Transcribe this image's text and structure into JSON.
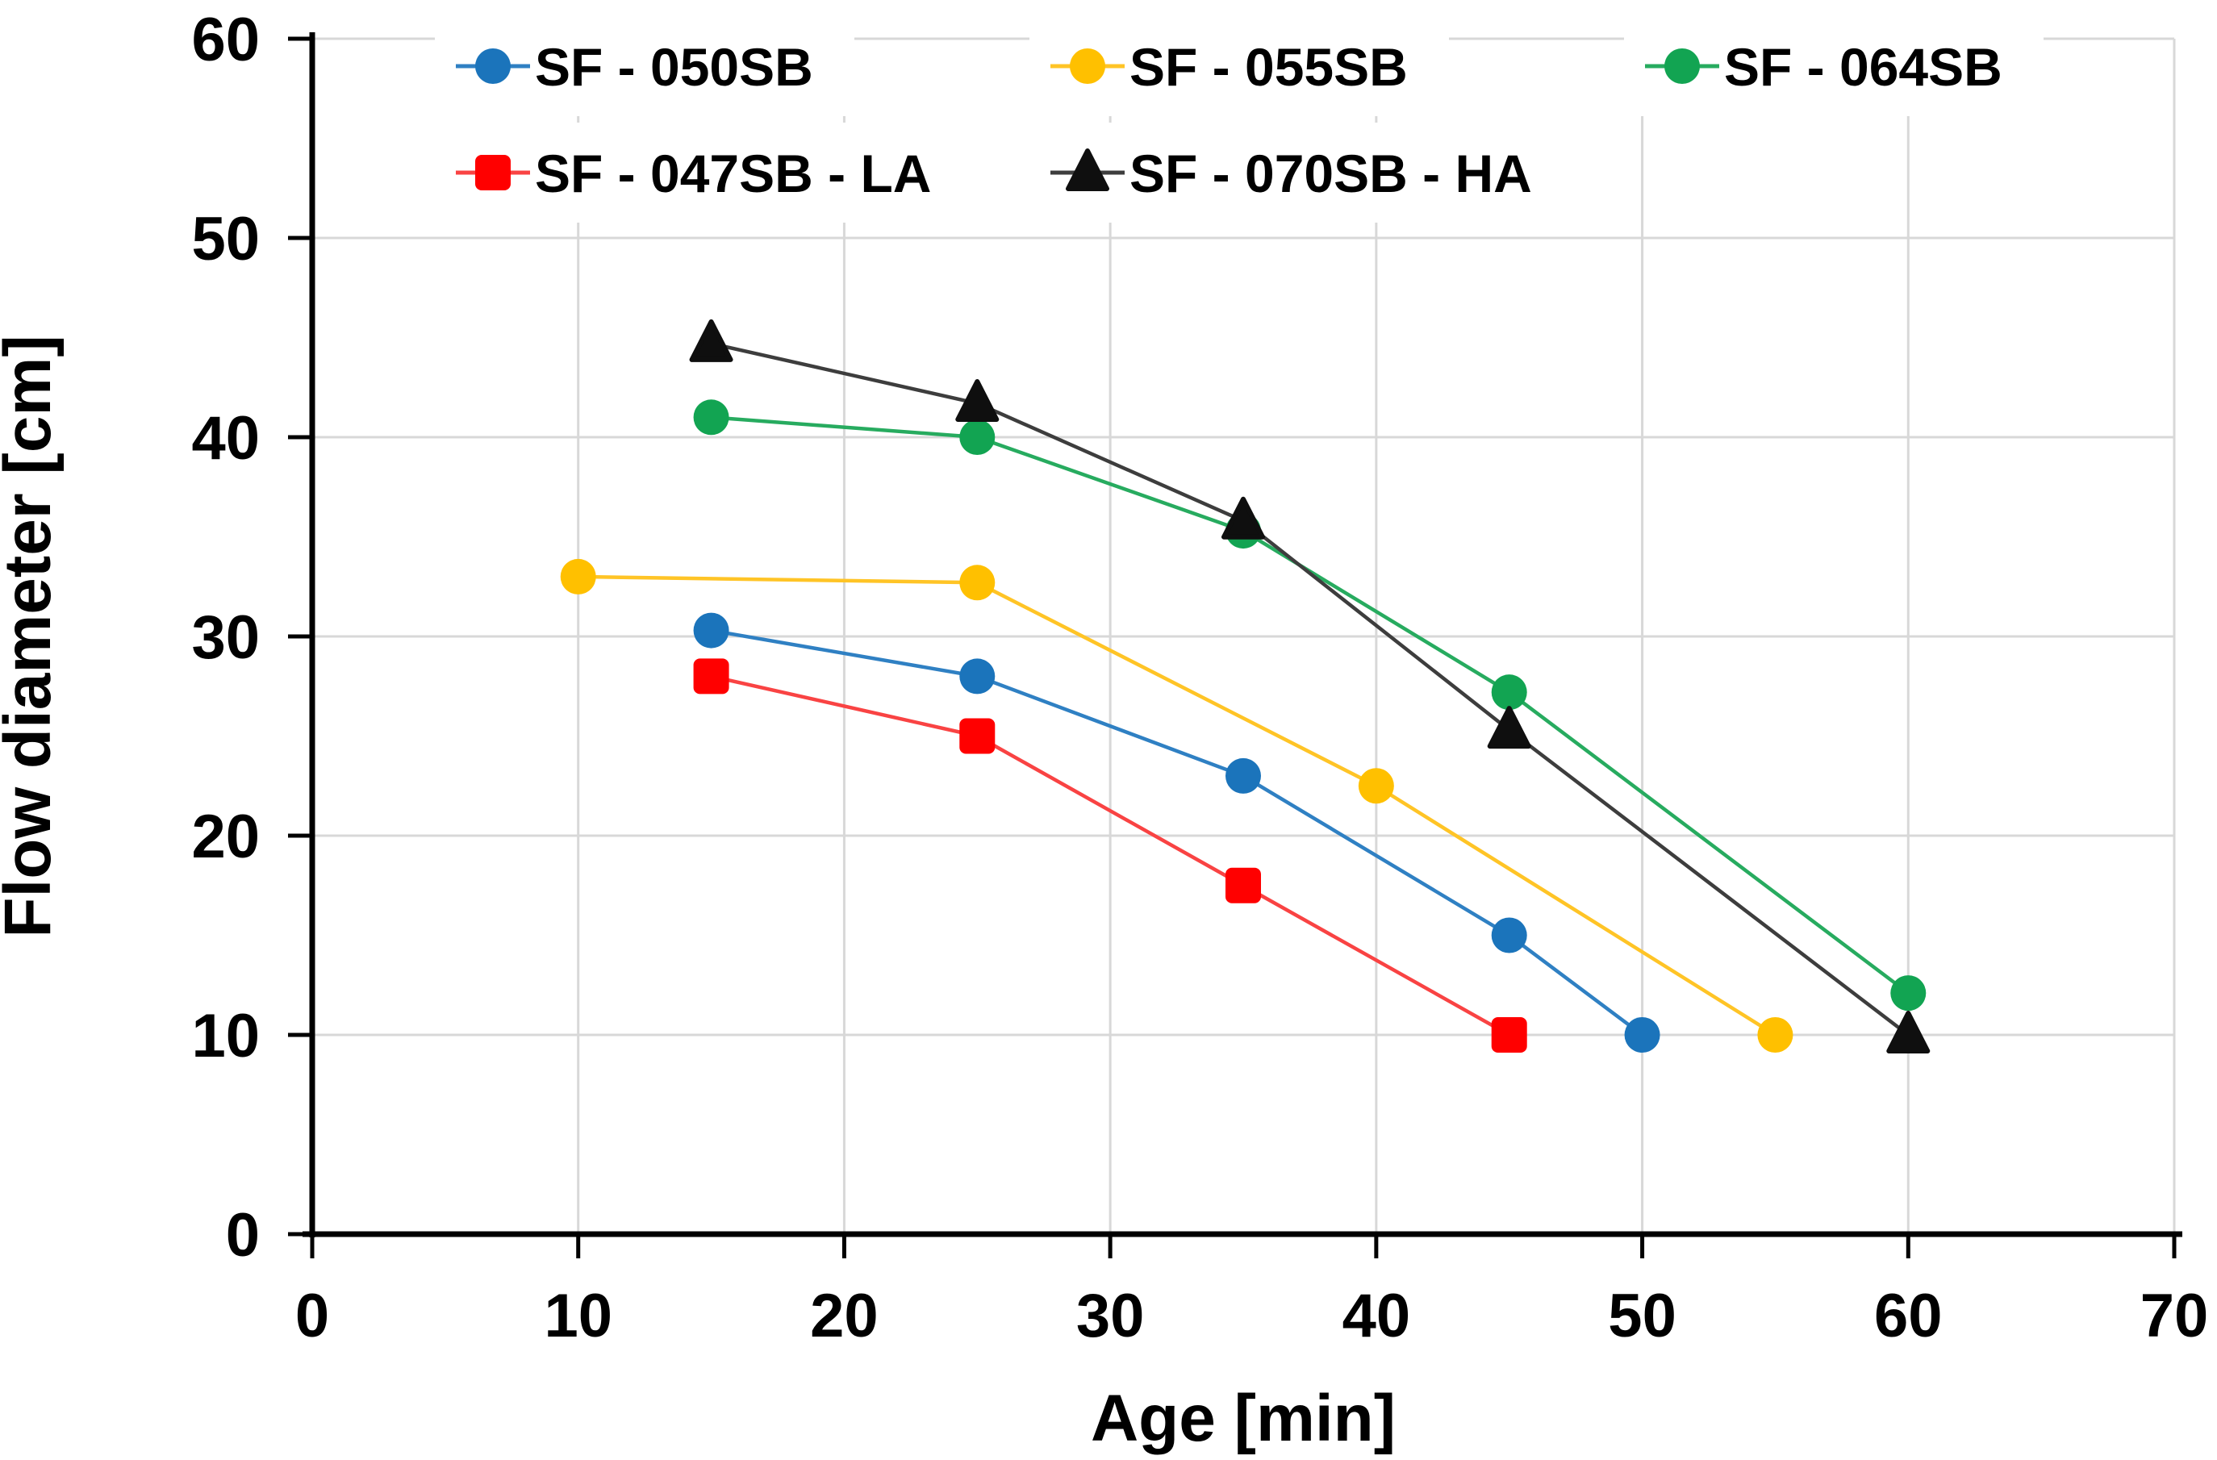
{
  "chart_data": {
    "type": "line",
    "title": "",
    "xlabel": "Age [min]",
    "ylabel": "Flow diameter [cm]",
    "xlim": [
      0,
      70
    ],
    "ylim": [
      0,
      60
    ],
    "xticks": [
      0,
      10,
      20,
      30,
      40,
      50,
      60,
      70
    ],
    "yticks": [
      0,
      10,
      20,
      30,
      40,
      50,
      60
    ],
    "grid": true,
    "grid_color": "#D8D8D8",
    "axis_color": "#000000",
    "text_color": "#000000",
    "background_color": "#FFFFFF",
    "legend_position": "top, two rows, inside plot",
    "series": [
      {
        "name": "SF - 050SB",
        "marker": "circle",
        "color": "#1B74BB",
        "line_color": "#2F80C3",
        "points": [
          [
            15,
            30.3
          ],
          [
            25,
            28
          ],
          [
            35,
            23
          ],
          [
            45,
            15
          ],
          [
            50,
            10
          ]
        ]
      },
      {
        "name": "SF - 055SB",
        "marker": "circle",
        "color": "#FFC000",
        "line_color": "#FFC426",
        "points": [
          [
            10,
            33
          ],
          [
            25,
            32.7
          ],
          [
            40,
            22.5
          ],
          [
            55,
            10
          ]
        ]
      },
      {
        "name": "SF - 064SB",
        "marker": "circle",
        "color": "#12A452",
        "line_color": "#27AB5F",
        "points": [
          [
            15,
            41
          ],
          [
            25,
            40
          ],
          [
            35,
            35.3
          ],
          [
            45,
            27.2
          ],
          [
            60,
            12.1
          ]
        ]
      },
      {
        "name": "SF - 047SB - LA",
        "marker": "square",
        "color": "#FF0000",
        "line_color": "#F94343",
        "points": [
          [
            15,
            28
          ],
          [
            25,
            25
          ],
          [
            35,
            17.5
          ],
          [
            45,
            10
          ]
        ]
      },
      {
        "name": "SF - 070SB - HA",
        "marker": "triangle-up",
        "color": "#0F0F0F",
        "line_color": "#3D3D3D",
        "points": [
          [
            15,
            44.7
          ],
          [
            25,
            41.7
          ],
          [
            35,
            35.8
          ],
          [
            45,
            25.3
          ],
          [
            60,
            10
          ]
        ]
      }
    ]
  }
}
